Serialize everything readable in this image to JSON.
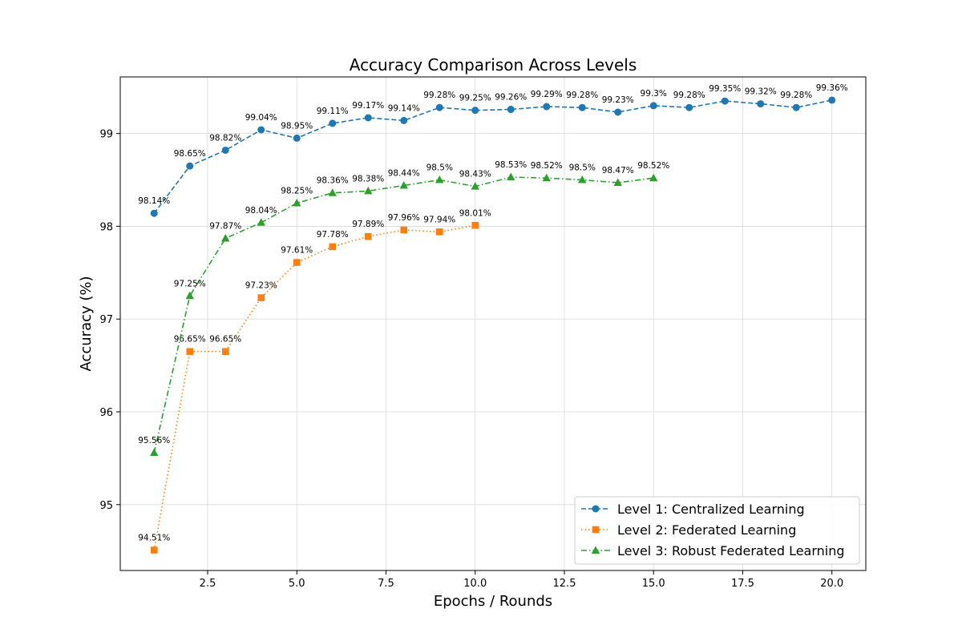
{
  "chart_data": {
    "type": "line",
    "title": "Accuracy Comparison Across Levels",
    "xlabel": "Epochs / Rounds",
    "ylabel": "Accuracy (%)",
    "xlim": [
      0.05,
      20.95
    ],
    "ylim": [
      94.29,
      99.61
    ],
    "xticks": [
      2.5,
      5.0,
      7.5,
      10.0,
      12.5,
      15.0,
      17.5,
      20.0
    ],
    "xtick_labels": [
      "2.5",
      "5.0",
      "7.5",
      "10.0",
      "12.5",
      "15.0",
      "17.5",
      "20.0"
    ],
    "yticks": [
      95,
      96,
      97,
      98,
      99
    ],
    "ytick_labels": [
      "95",
      "96",
      "97",
      "98",
      "99"
    ],
    "grid": true,
    "legend_position": "bottom-right",
    "series": [
      {
        "name": "Level 1: Centralized Learning",
        "color": "#1f77b4",
        "marker": "circle",
        "line_style": "dashed",
        "x": [
          1,
          2,
          3,
          4,
          5,
          6,
          7,
          8,
          9,
          10,
          11,
          12,
          13,
          14,
          15,
          16,
          17,
          18,
          19,
          20
        ],
        "values": [
          98.14,
          98.65,
          98.82,
          99.04,
          98.95,
          99.11,
          99.17,
          99.14,
          99.28,
          99.25,
          99.26,
          99.29,
          99.28,
          99.23,
          99.3,
          99.28,
          99.35,
          99.32,
          99.28,
          99.36
        ],
        "labels": [
          "98.14%",
          "98.65%",
          "98.82%",
          "99.04%",
          "98.95%",
          "99.11%",
          "99.17%",
          "99.14%",
          "99.28%",
          "99.25%",
          "99.26%",
          "99.29%",
          "99.28%",
          "99.23%",
          "99.3%",
          "99.28%",
          "99.35%",
          "99.32%",
          "99.28%",
          "99.36%"
        ]
      },
      {
        "name": "Level 2: Federated Learning",
        "color": "#ff7f0e",
        "marker": "square",
        "line_style": "dotted",
        "x": [
          1,
          2,
          3,
          4,
          5,
          6,
          7,
          8,
          9,
          10
        ],
        "values": [
          94.51,
          96.65,
          96.65,
          97.23,
          97.61,
          97.78,
          97.89,
          97.96,
          97.94,
          98.01
        ],
        "labels": [
          "94.51%",
          "96.65%",
          "96.65%",
          "97.23%",
          "97.61%",
          "97.78%",
          "97.89%",
          "97.96%",
          "97.94%",
          "98.01%"
        ]
      },
      {
        "name": "Level 3: Robust Federated Learning",
        "color": "#2ca02c",
        "marker": "triangle",
        "line_style": "dashdot",
        "x": [
          1,
          2,
          3,
          4,
          5,
          6,
          7,
          8,
          9,
          10,
          11,
          12,
          13,
          14,
          15
        ],
        "values": [
          95.56,
          97.25,
          97.87,
          98.04,
          98.25,
          98.36,
          98.38,
          98.44,
          98.5,
          98.43,
          98.53,
          98.52,
          98.5,
          98.47,
          98.52
        ],
        "labels": [
          "95.56%",
          "97.25%",
          "97.87%",
          "98.04%",
          "98.25%",
          "98.36%",
          "98.38%",
          "98.44%",
          "98.5%",
          "98.43%",
          "98.53%",
          "98.52%",
          "98.5%",
          "98.47%",
          "98.52%"
        ]
      }
    ]
  }
}
